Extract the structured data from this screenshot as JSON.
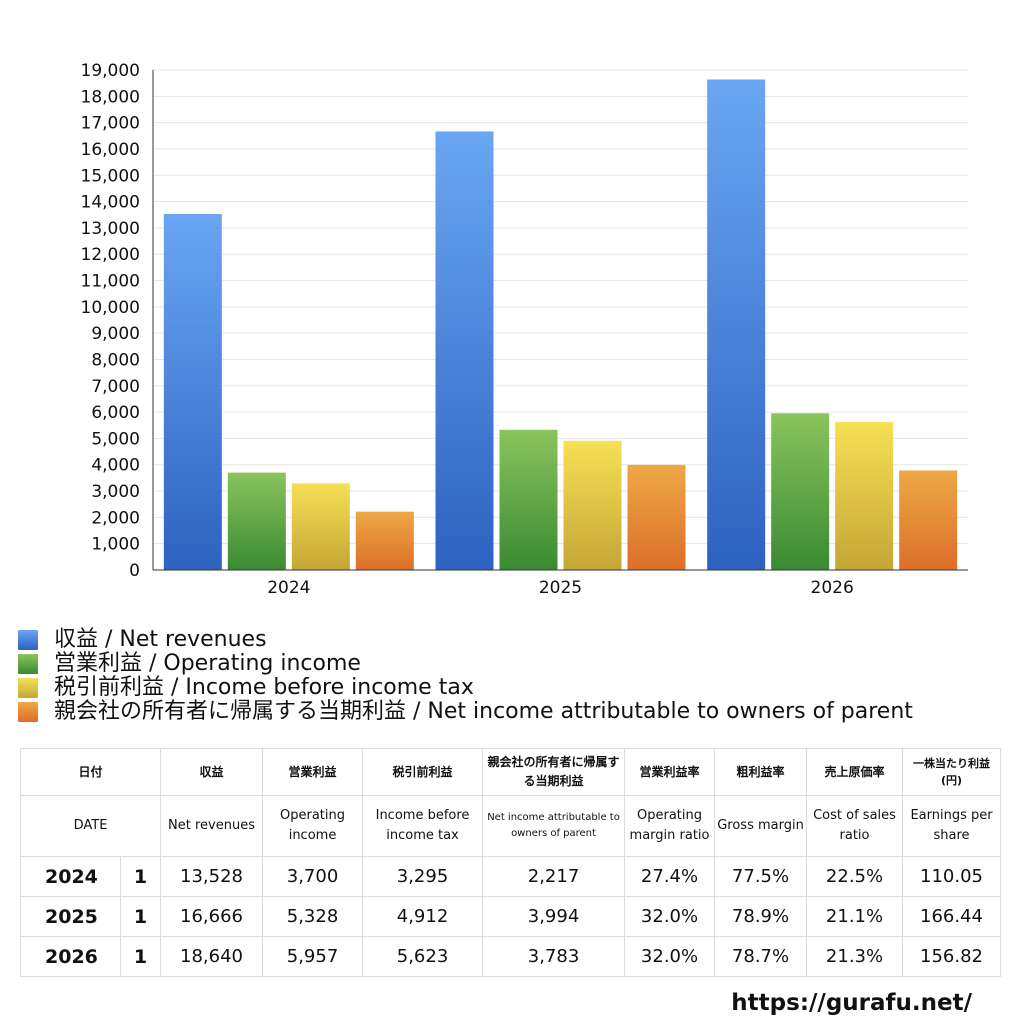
{
  "chart_data": {
    "type": "bar",
    "categories": [
      "2024",
      "2025",
      "2026"
    ],
    "series": [
      {
        "name": "収益 / Net revenues",
        "values": [
          13528,
          16666,
          18640
        ]
      },
      {
        "name": "営業利益 / Operating income",
        "values": [
          3700,
          5328,
          5957
        ]
      },
      {
        "name": "税引前利益 / Income before income tax",
        "values": [
          3295,
          4912,
          5623
        ]
      },
      {
        "name": "親会社の所有者に帰属する当期利益 / Net income attributable to owners of parent",
        "values": [
          2217,
          3994,
          3783
        ]
      }
    ],
    "y_ticks": [
      "0",
      "1,000",
      "2,000",
      "3,000",
      "4,000",
      "5,000",
      "6,000",
      "7,000",
      "8,000",
      "9,000",
      "10,000",
      "11,000",
      "12,000",
      "13,000",
      "14,000",
      "15,000",
      "16,000",
      "17,000",
      "18,000",
      "19,000"
    ],
    "ylim": [
      0,
      19000
    ],
    "grid": true,
    "legend_position": "bottom"
  },
  "colors": {
    "series": [
      {
        "top": "#6aa6f2",
        "bottom": "#2d62c0"
      },
      {
        "top": "#8ac45c",
        "bottom": "#3a8a33"
      },
      {
        "top": "#f6e055",
        "bottom": "#c4a636"
      },
      {
        "top": "#eea845",
        "bottom": "#dc6f2a"
      }
    ]
  },
  "table": {
    "headers_ja": [
      "日付",
      "収益",
      "営業利益",
      "税引前利益",
      "親会社の所有者に帰属する当期利益",
      "営業利益率",
      "粗利益率",
      "売上原価率",
      "一株当たり利益(円)"
    ],
    "headers_en": [
      "DATE",
      "Net revenues",
      "Operating income",
      "Income before income tax",
      "Net income attributable to owners of parent",
      "Operating margin ratio",
      "Gross margin",
      "Cost of sales ratio",
      "Earnings per share"
    ],
    "rows": [
      {
        "year": "2024",
        "count": "1",
        "cells": [
          "13,528",
          "3,700",
          "3,295",
          "2,217",
          "27.4%",
          "77.5%",
          "22.5%",
          "110.05"
        ]
      },
      {
        "year": "2025",
        "count": "1",
        "cells": [
          "16,666",
          "5,328",
          "4,912",
          "3,994",
          "32.0%",
          "78.9%",
          "21.1%",
          "166.44"
        ]
      },
      {
        "year": "2026",
        "count": "1",
        "cells": [
          "18,640",
          "5,957",
          "5,623",
          "3,783",
          "32.0%",
          "78.7%",
          "21.3%",
          "156.82"
        ]
      }
    ]
  },
  "source": "https://gurafu.net/"
}
